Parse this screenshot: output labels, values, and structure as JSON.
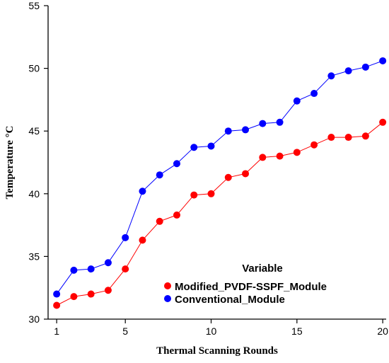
{
  "chart_data": {
    "type": "line",
    "title": "",
    "xlabel": "Thermal Scanning Rounds",
    "ylabel": "Temperature °C",
    "xlim": [
      0.5,
      20.2
    ],
    "ylim": [
      30,
      55
    ],
    "xticks": [
      1,
      5,
      10,
      15,
      20
    ],
    "yticks": [
      30,
      35,
      40,
      45,
      50,
      55
    ],
    "grid": false,
    "legend": {
      "title": "Variable",
      "position": "bottom-right"
    },
    "x": [
      1,
      2,
      3,
      4,
      5,
      6,
      7,
      8,
      9,
      10,
      11,
      12,
      13,
      14,
      15,
      16,
      17,
      18,
      19,
      20
    ],
    "series": [
      {
        "name": "Modified_PVDF-SSPF_Module",
        "color": "#ff0000",
        "values": [
          31.1,
          31.8,
          32.0,
          32.3,
          34.0,
          36.3,
          37.8,
          38.3,
          39.9,
          40.0,
          41.3,
          41.6,
          42.9,
          43.0,
          43.3,
          43.9,
          44.5,
          44.5,
          44.6,
          45.7
        ]
      },
      {
        "name": "Conventional_Module",
        "color": "#0000ff",
        "values": [
          32.0,
          33.9,
          34.0,
          34.5,
          36.5,
          40.2,
          41.5,
          42.4,
          43.7,
          43.8,
          45.0,
          45.1,
          45.6,
          45.7,
          47.4,
          48.0,
          49.4,
          49.8,
          50.1,
          50.6
        ]
      }
    ]
  }
}
